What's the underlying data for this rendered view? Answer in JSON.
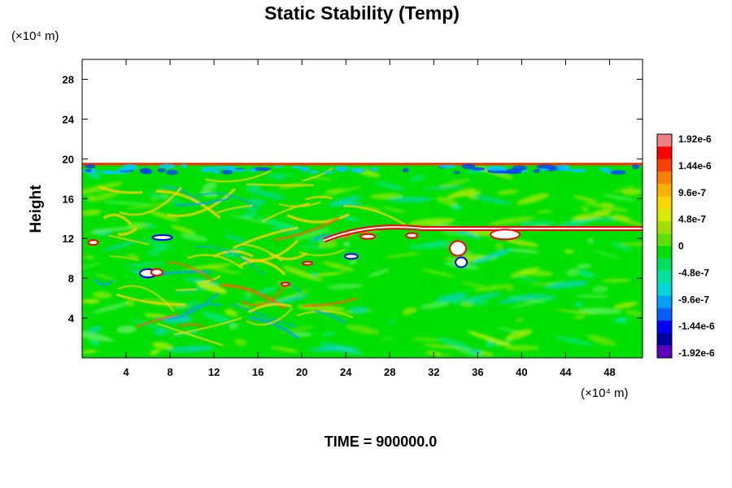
{
  "chart_data": {
    "type": "heatmap",
    "title": "Static Stability (Temp)",
    "ylabel": "Height",
    "xlabel": "",
    "x_unit": "(×10⁴ m)",
    "y_unit": "(×10⁴ m)",
    "xlim": [
      0,
      51
    ],
    "ylim": [
      0,
      30
    ],
    "x_ticks": [
      "4",
      "8",
      "12",
      "16",
      "20",
      "24",
      "28",
      "32",
      "36",
      "40",
      "44",
      "48"
    ],
    "y_ticks": [
      "4",
      "8",
      "12",
      "16",
      "20",
      "24",
      "28"
    ],
    "x_tick_values": [
      4,
      8,
      12,
      16,
      20,
      24,
      28,
      32,
      36,
      40,
      44,
      48
    ],
    "y_tick_values": [
      4,
      8,
      12,
      16,
      20,
      24,
      28
    ],
    "field_top": 19.6,
    "colorbar": {
      "labels": [
        "1.92e-6",
        "1.44e-6",
        "9.6e-7",
        "4.8e-7",
        "0",
        "-4.8e-7",
        "-9.6e-7",
        "-1.44e-6",
        "-1.92e-6"
      ],
      "values": [
        1.92e-06,
        1.44e-06,
        9.6e-07,
        4.8e-07,
        0,
        -4.8e-07,
        -9.6e-07,
        -1.44e-06,
        -1.92e-06
      ],
      "colors": [
        "#f08080",
        "#ff0000",
        "#ff4000",
        "#ff8000",
        "#ffb000",
        "#ffd700",
        "#d8e800",
        "#a0e000",
        "#60e000",
        "#00e000",
        "#00e060",
        "#00e0a0",
        "#00d8d8",
        "#00a0ff",
        "#0060ff",
        "#0000ff",
        "#0000a0",
        "#6000c0"
      ]
    },
    "features": [
      {
        "kind": "strong-positive band",
        "x_range": [
          22,
          51
        ],
        "y": 12.8
      },
      {
        "kind": "strong-positive layer",
        "x_range": [
          0,
          51
        ],
        "y": 19.6
      },
      {
        "kind": "positive streaks",
        "region": "x 0-22, y 2-18"
      },
      {
        "kind": "negative patches",
        "region": "near tropopause and x 0-10, y 5-12"
      }
    ],
    "background": "#00e000"
  },
  "footer": {
    "time_text": "TIME = 900000.0"
  }
}
